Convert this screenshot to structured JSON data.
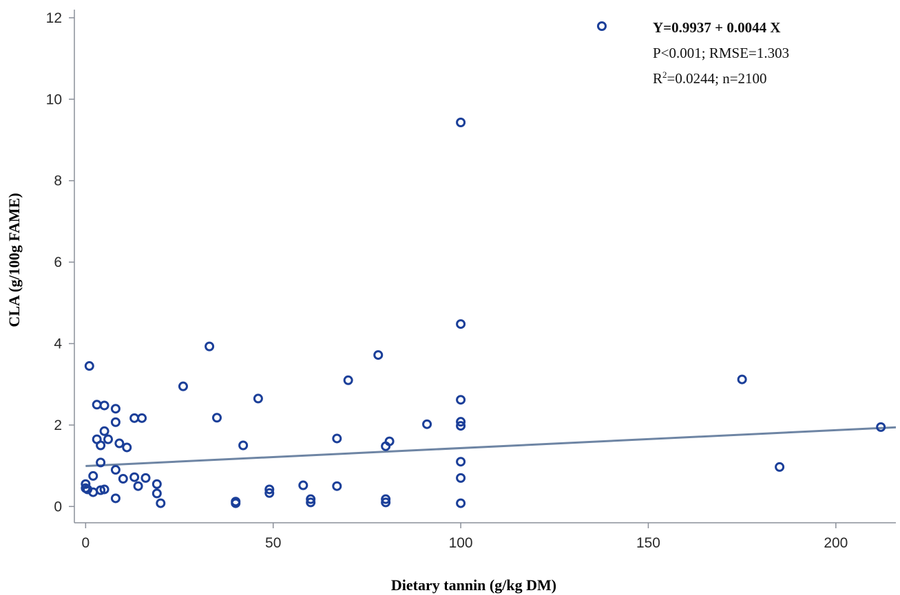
{
  "chart_data": {
    "type": "scatter",
    "xlabel": "Dietary tannin (g/kg DM)",
    "ylabel": "CLA (g/100g FAME)",
    "xlim": [
      -3,
      216
    ],
    "ylim": [
      -0.4,
      12.2
    ],
    "xticks": [
      0,
      50,
      100,
      150,
      200
    ],
    "yticks": [
      0,
      2,
      4,
      6,
      8,
      10,
      12
    ],
    "grid": false,
    "legend": {
      "position": "top-right",
      "equation": "Y=0.9937 + 0.0044 X",
      "stats_line1": "P<0.001; RMSE=1.303",
      "r2_prefix": "R",
      "r2_sup": "2",
      "r2_rest": "=0.0244; n=2100"
    },
    "regression": {
      "intercept": 0.9937,
      "slope": 0.0044,
      "x_range": [
        0,
        216
      ]
    },
    "points": [
      [
        0,
        0.55
      ],
      [
        0,
        0.45
      ],
      [
        0.5,
        0.42
      ],
      [
        1,
        3.45
      ],
      [
        2,
        0.75
      ],
      [
        2,
        0.35
      ],
      [
        3,
        2.5
      ],
      [
        3,
        1.65
      ],
      [
        4,
        1.5
      ],
      [
        4,
        1.08
      ],
      [
        4,
        0.4
      ],
      [
        5,
        2.48
      ],
      [
        5,
        1.85
      ],
      [
        5,
        0.42
      ],
      [
        6,
        1.65
      ],
      [
        8,
        2.4
      ],
      [
        8,
        2.07
      ],
      [
        8,
        0.9
      ],
      [
        8,
        0.2
      ],
      [
        9,
        1.55
      ],
      [
        10,
        0.68
      ],
      [
        11,
        1.45
      ],
      [
        13,
        2.17
      ],
      [
        13,
        0.72
      ],
      [
        14,
        0.5
      ],
      [
        15,
        2.17
      ],
      [
        16,
        0.7
      ],
      [
        19,
        0.55
      ],
      [
        19,
        0.32
      ],
      [
        20,
        0.08
      ],
      [
        26,
        2.95
      ],
      [
        33,
        3.93
      ],
      [
        35,
        2.18
      ],
      [
        40,
        0.12
      ],
      [
        40,
        0.08
      ],
      [
        42,
        1.5
      ],
      [
        46,
        2.65
      ],
      [
        49,
        0.42
      ],
      [
        49,
        0.33
      ],
      [
        58,
        0.52
      ],
      [
        60,
        0.18
      ],
      [
        60,
        0.1
      ],
      [
        67,
        1.67
      ],
      [
        67,
        0.5
      ],
      [
        70,
        3.1
      ],
      [
        78,
        3.72
      ],
      [
        80,
        1.48
      ],
      [
        80,
        0.18
      ],
      [
        80,
        0.1
      ],
      [
        81,
        1.6
      ],
      [
        91,
        2.02
      ],
      [
        100,
        9.43
      ],
      [
        100,
        4.48
      ],
      [
        100,
        2.62
      ],
      [
        100,
        2.08
      ],
      [
        100,
        1.98
      ],
      [
        100,
        1.1
      ],
      [
        100,
        0.7
      ],
      [
        100,
        0.08
      ],
      [
        175,
        3.12
      ],
      [
        185,
        0.97
      ],
      [
        212,
        1.95
      ]
    ]
  }
}
